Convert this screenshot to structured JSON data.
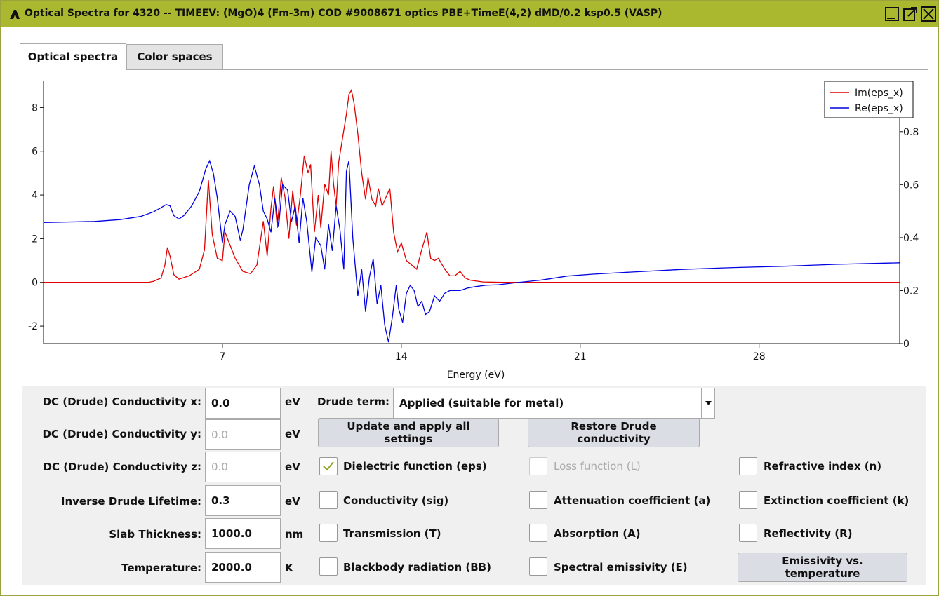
{
  "window": {
    "title": "Optical Spectra for 4320 -- TIMEEV: (MgO)4 (Fm-3m) COD #9008671 optics PBE+TimeE(4,2) dMD/0.2 ksp0.5 (VASP)",
    "colors": {
      "titlebar": "#a9b82e"
    }
  },
  "tabs": [
    {
      "label": "Optical spectra",
      "selected": true
    },
    {
      "label": "Color spaces",
      "selected": false
    }
  ],
  "chart_data": {
    "type": "line",
    "xlabel": "Energy (eV)",
    "xlim": [
      0,
      33.5
    ],
    "x_ticks": [
      "7",
      "14",
      "21",
      "28"
    ],
    "y_left_lim": [
      -2.8,
      9.2
    ],
    "y_left_ticks": [
      "-2",
      "0",
      "2",
      "4",
      "6",
      "8"
    ],
    "y_right_lim": [
      0,
      0.99
    ],
    "y_right_ticks": [
      "0",
      "0.2",
      "0.4",
      "0.6",
      "0.8"
    ],
    "legend_position": "top-right",
    "series": [
      {
        "name": "Im(eps_x)",
        "color": "#e00000",
        "axis": "left",
        "points": [
          [
            0,
            0
          ],
          [
            4.1,
            0
          ],
          [
            4.3,
            0.05
          ],
          [
            4.6,
            0.2
          ],
          [
            4.75,
            0.8
          ],
          [
            4.85,
            1.6
          ],
          [
            4.95,
            1.2
          ],
          [
            5.1,
            0.35
          ],
          [
            5.3,
            0.15
          ],
          [
            5.7,
            0.3
          ],
          [
            6.1,
            0.6
          ],
          [
            6.3,
            1.5
          ],
          [
            6.45,
            4.7
          ],
          [
            6.6,
            2.2
          ],
          [
            6.8,
            1.1
          ],
          [
            7.0,
            1.0
          ],
          [
            7.1,
            2.3
          ],
          [
            7.2,
            2.0
          ],
          [
            7.5,
            1.1
          ],
          [
            7.8,
            0.5
          ],
          [
            8.1,
            0.4
          ],
          [
            8.35,
            0.8
          ],
          [
            8.6,
            2.8
          ],
          [
            8.75,
            1.2
          ],
          [
            8.9,
            3.4
          ],
          [
            9.0,
            4.4
          ],
          [
            9.15,
            2.5
          ],
          [
            9.3,
            4.8
          ],
          [
            9.45,
            3.9
          ],
          [
            9.6,
            2.0
          ],
          [
            9.75,
            4.2
          ],
          [
            9.9,
            2.6
          ],
          [
            10.05,
            4.0
          ],
          [
            10.2,
            5.8
          ],
          [
            10.35,
            5.0
          ],
          [
            10.45,
            5.4
          ],
          [
            10.6,
            2.3
          ],
          [
            10.75,
            4.0
          ],
          [
            10.85,
            2.5
          ],
          [
            11.0,
            4.5
          ],
          [
            11.15,
            4.0
          ],
          [
            11.25,
            6.0
          ],
          [
            11.35,
            4.5
          ],
          [
            11.45,
            3.5
          ],
          [
            11.55,
            5.5
          ],
          [
            11.7,
            6.6
          ],
          [
            11.85,
            7.7
          ],
          [
            11.95,
            8.6
          ],
          [
            12.05,
            8.8
          ],
          [
            12.15,
            8.2
          ],
          [
            12.3,
            6.8
          ],
          [
            12.45,
            5.0
          ],
          [
            12.6,
            3.8
          ],
          [
            12.7,
            4.8
          ],
          [
            12.85,
            3.8
          ],
          [
            13.0,
            3.5
          ],
          [
            13.1,
            4.3
          ],
          [
            13.25,
            3.5
          ],
          [
            13.4,
            3.9
          ],
          [
            13.55,
            4.3
          ],
          [
            13.7,
            2.3
          ],
          [
            13.85,
            1.4
          ],
          [
            14.0,
            1.8
          ],
          [
            14.2,
            1.0
          ],
          [
            14.4,
            0.8
          ],
          [
            14.6,
            0.6
          ],
          [
            14.8,
            1.5
          ],
          [
            15.0,
            2.3
          ],
          [
            15.15,
            1.1
          ],
          [
            15.3,
            1.0
          ],
          [
            15.45,
            1.1
          ],
          [
            15.7,
            0.6
          ],
          [
            15.9,
            0.3
          ],
          [
            16.1,
            0.3
          ],
          [
            16.3,
            0.5
          ],
          [
            16.5,
            0.2
          ],
          [
            16.7,
            0.1
          ],
          [
            17.2,
            0.02
          ],
          [
            18,
            0
          ],
          [
            33.5,
            0
          ]
        ]
      },
      {
        "name": "Re(eps_x)",
        "color": "#0000e0",
        "axis": "right",
        "points": [
          [
            0,
            0.457
          ],
          [
            2,
            0.461
          ],
          [
            3,
            0.468
          ],
          [
            3.8,
            0.48
          ],
          [
            4.3,
            0.497
          ],
          [
            4.6,
            0.513
          ],
          [
            4.8,
            0.525
          ],
          [
            4.95,
            0.52
          ],
          [
            5.1,
            0.483
          ],
          [
            5.3,
            0.47
          ],
          [
            5.5,
            0.484
          ],
          [
            5.8,
            0.52
          ],
          [
            6.1,
            0.575
          ],
          [
            6.35,
            0.66
          ],
          [
            6.5,
            0.69
          ],
          [
            6.65,
            0.64
          ],
          [
            6.8,
            0.55
          ],
          [
            7.0,
            0.38
          ],
          [
            7.1,
            0.45
          ],
          [
            7.3,
            0.5
          ],
          [
            7.5,
            0.48
          ],
          [
            7.7,
            0.39
          ],
          [
            7.8,
            0.43
          ],
          [
            8.05,
            0.6
          ],
          [
            8.25,
            0.67
          ],
          [
            8.45,
            0.6
          ],
          [
            8.6,
            0.5
          ],
          [
            8.75,
            0.47
          ],
          [
            8.9,
            0.42
          ],
          [
            9.05,
            0.55
          ],
          [
            9.2,
            0.44
          ],
          [
            9.35,
            0.6
          ],
          [
            9.55,
            0.58
          ],
          [
            9.7,
            0.46
          ],
          [
            9.85,
            0.52
          ],
          [
            10.0,
            0.38
          ],
          [
            10.15,
            0.55
          ],
          [
            10.3,
            0.46
          ],
          [
            10.5,
            0.27
          ],
          [
            10.65,
            0.4
          ],
          [
            10.85,
            0.37
          ],
          [
            11.0,
            0.28
          ],
          [
            11.15,
            0.45
          ],
          [
            11.3,
            0.35
          ],
          [
            11.45,
            0.52
          ],
          [
            11.6,
            0.43
          ],
          [
            11.75,
            0.28
          ],
          [
            11.85,
            0.65
          ],
          [
            11.95,
            0.69
          ],
          [
            12.1,
            0.4
          ],
          [
            12.3,
            0.18
          ],
          [
            12.45,
            0.28
          ],
          [
            12.6,
            0.12
          ],
          [
            12.75,
            0.25
          ],
          [
            12.9,
            0.32
          ],
          [
            13.05,
            0.15
          ],
          [
            13.2,
            0.22
          ],
          [
            13.35,
            0.07
          ],
          [
            13.5,
            0.005
          ],
          [
            13.65,
            0.1
          ],
          [
            13.8,
            0.22
          ],
          [
            13.9,
            0.13
          ],
          [
            14.05,
            0.08
          ],
          [
            14.2,
            0.19
          ],
          [
            14.35,
            0.22
          ],
          [
            14.5,
            0.2
          ],
          [
            14.65,
            0.14
          ],
          [
            14.8,
            0.16
          ],
          [
            14.95,
            0.11
          ],
          [
            15.1,
            0.12
          ],
          [
            15.3,
            0.18
          ],
          [
            15.5,
            0.16
          ],
          [
            15.7,
            0.19
          ],
          [
            15.9,
            0.2
          ],
          [
            16.1,
            0.2
          ],
          [
            16.3,
            0.2
          ],
          [
            16.6,
            0.21
          ],
          [
            16.9,
            0.215
          ],
          [
            17.3,
            0.22
          ],
          [
            17.8,
            0.222
          ],
          [
            18.5,
            0.23
          ],
          [
            19.5,
            0.24
          ],
          [
            20.5,
            0.255
          ],
          [
            21.5,
            0.262
          ],
          [
            23,
            0.27
          ],
          [
            25,
            0.28
          ],
          [
            27,
            0.287
          ],
          [
            29,
            0.292
          ],
          [
            31,
            0.299
          ],
          [
            33.5,
            0.305
          ]
        ]
      }
    ]
  },
  "settings": {
    "rows": [
      {
        "label": "DC (Drude) Conductivity x:",
        "value": "0.0",
        "unit": "eV",
        "disabled": false
      },
      {
        "label": "DC (Drude) Conductivity y:",
        "value": "0.0",
        "unit": "eV",
        "disabled": true
      },
      {
        "label": "DC (Drude) Conductivity z:",
        "value": "0.0",
        "unit": "eV",
        "disabled": true
      },
      {
        "label": "Inverse Drude Lifetime:",
        "value": "0.3",
        "unit": "eV",
        "disabled": false
      },
      {
        "label": "Slab Thickness:",
        "value": "1000.0",
        "unit": "nm",
        "disabled": false
      },
      {
        "label": "Temperature:",
        "value": "2000.0",
        "unit": "K",
        "disabled": false
      }
    ],
    "drude_term": {
      "label": "Drude term:",
      "value": "Applied (suitable for metal)"
    },
    "buttons": {
      "update": "Update and apply all settings",
      "restore": "Restore Drude conductivity",
      "emissivity": "Emissivity vs. temperature"
    },
    "checkboxes": [
      {
        "label": "Dielectric function (eps)",
        "checked": true,
        "disabled": false
      },
      {
        "label": "Loss function (L)",
        "checked": false,
        "disabled": true
      },
      {
        "label": "Refractive index (n)",
        "checked": false,
        "disabled": false
      },
      {
        "label": "Conductivity (sig)",
        "checked": false,
        "disabled": false
      },
      {
        "label": "Attenuation coefficient (a)",
        "checked": false,
        "disabled": false
      },
      {
        "label": "Extinction coefficient (k)",
        "checked": false,
        "disabled": false
      },
      {
        "label": "Transmission (T)",
        "checked": false,
        "disabled": false
      },
      {
        "label": "Absorption (A)",
        "checked": false,
        "disabled": false
      },
      {
        "label": "Reflectivity (R)",
        "checked": false,
        "disabled": false
      },
      {
        "label": "Blackbody radiation (BB)",
        "checked": false,
        "disabled": false
      },
      {
        "label": "Spectral emissivity (E)",
        "checked": false,
        "disabled": false
      }
    ]
  }
}
